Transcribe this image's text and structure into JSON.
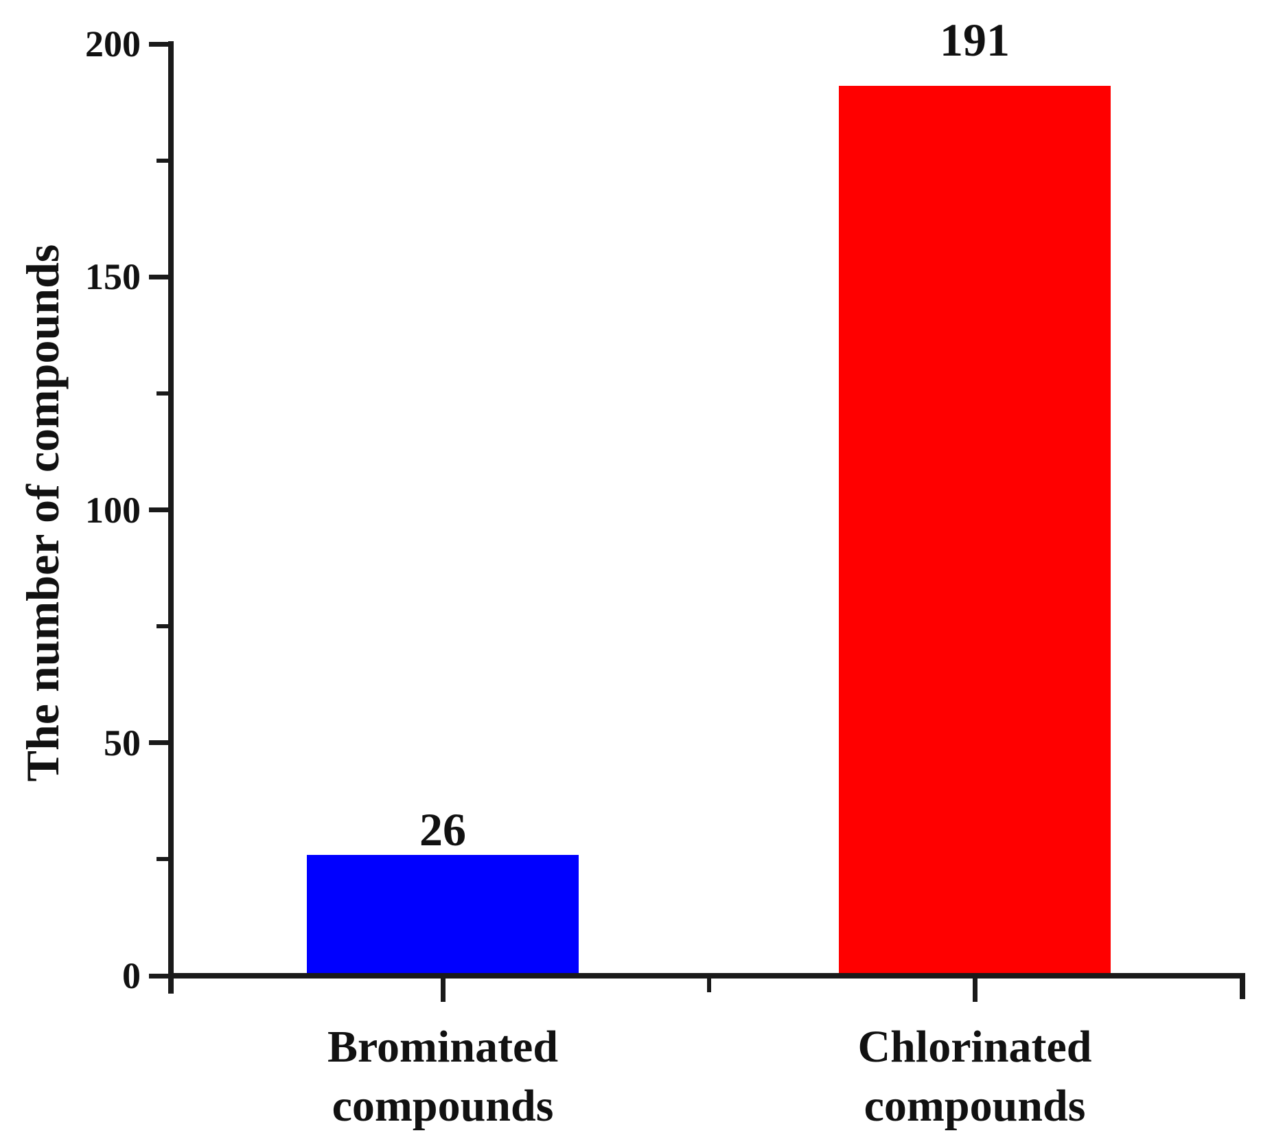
{
  "figure": {
    "background_color": "#ffffff",
    "axis_color": "#1a1a1a",
    "text_color": "#111111"
  },
  "chart_data": {
    "type": "bar",
    "title": "",
    "xlabel": "",
    "ylabel": "The number of compounds",
    "categories": [
      "Brominated compounds",
      "Chlorinated compounds"
    ],
    "values": [
      26,
      191
    ],
    "value_labels": [
      "26",
      "191"
    ],
    "bar_colors": [
      "#0000ff",
      "#ff0000"
    ],
    "ylim": [
      0,
      200
    ],
    "yticks_major": [
      0,
      50,
      100,
      150,
      200
    ],
    "yticks_minor": [
      25,
      75,
      125,
      175
    ],
    "grid": false,
    "legend": false
  }
}
